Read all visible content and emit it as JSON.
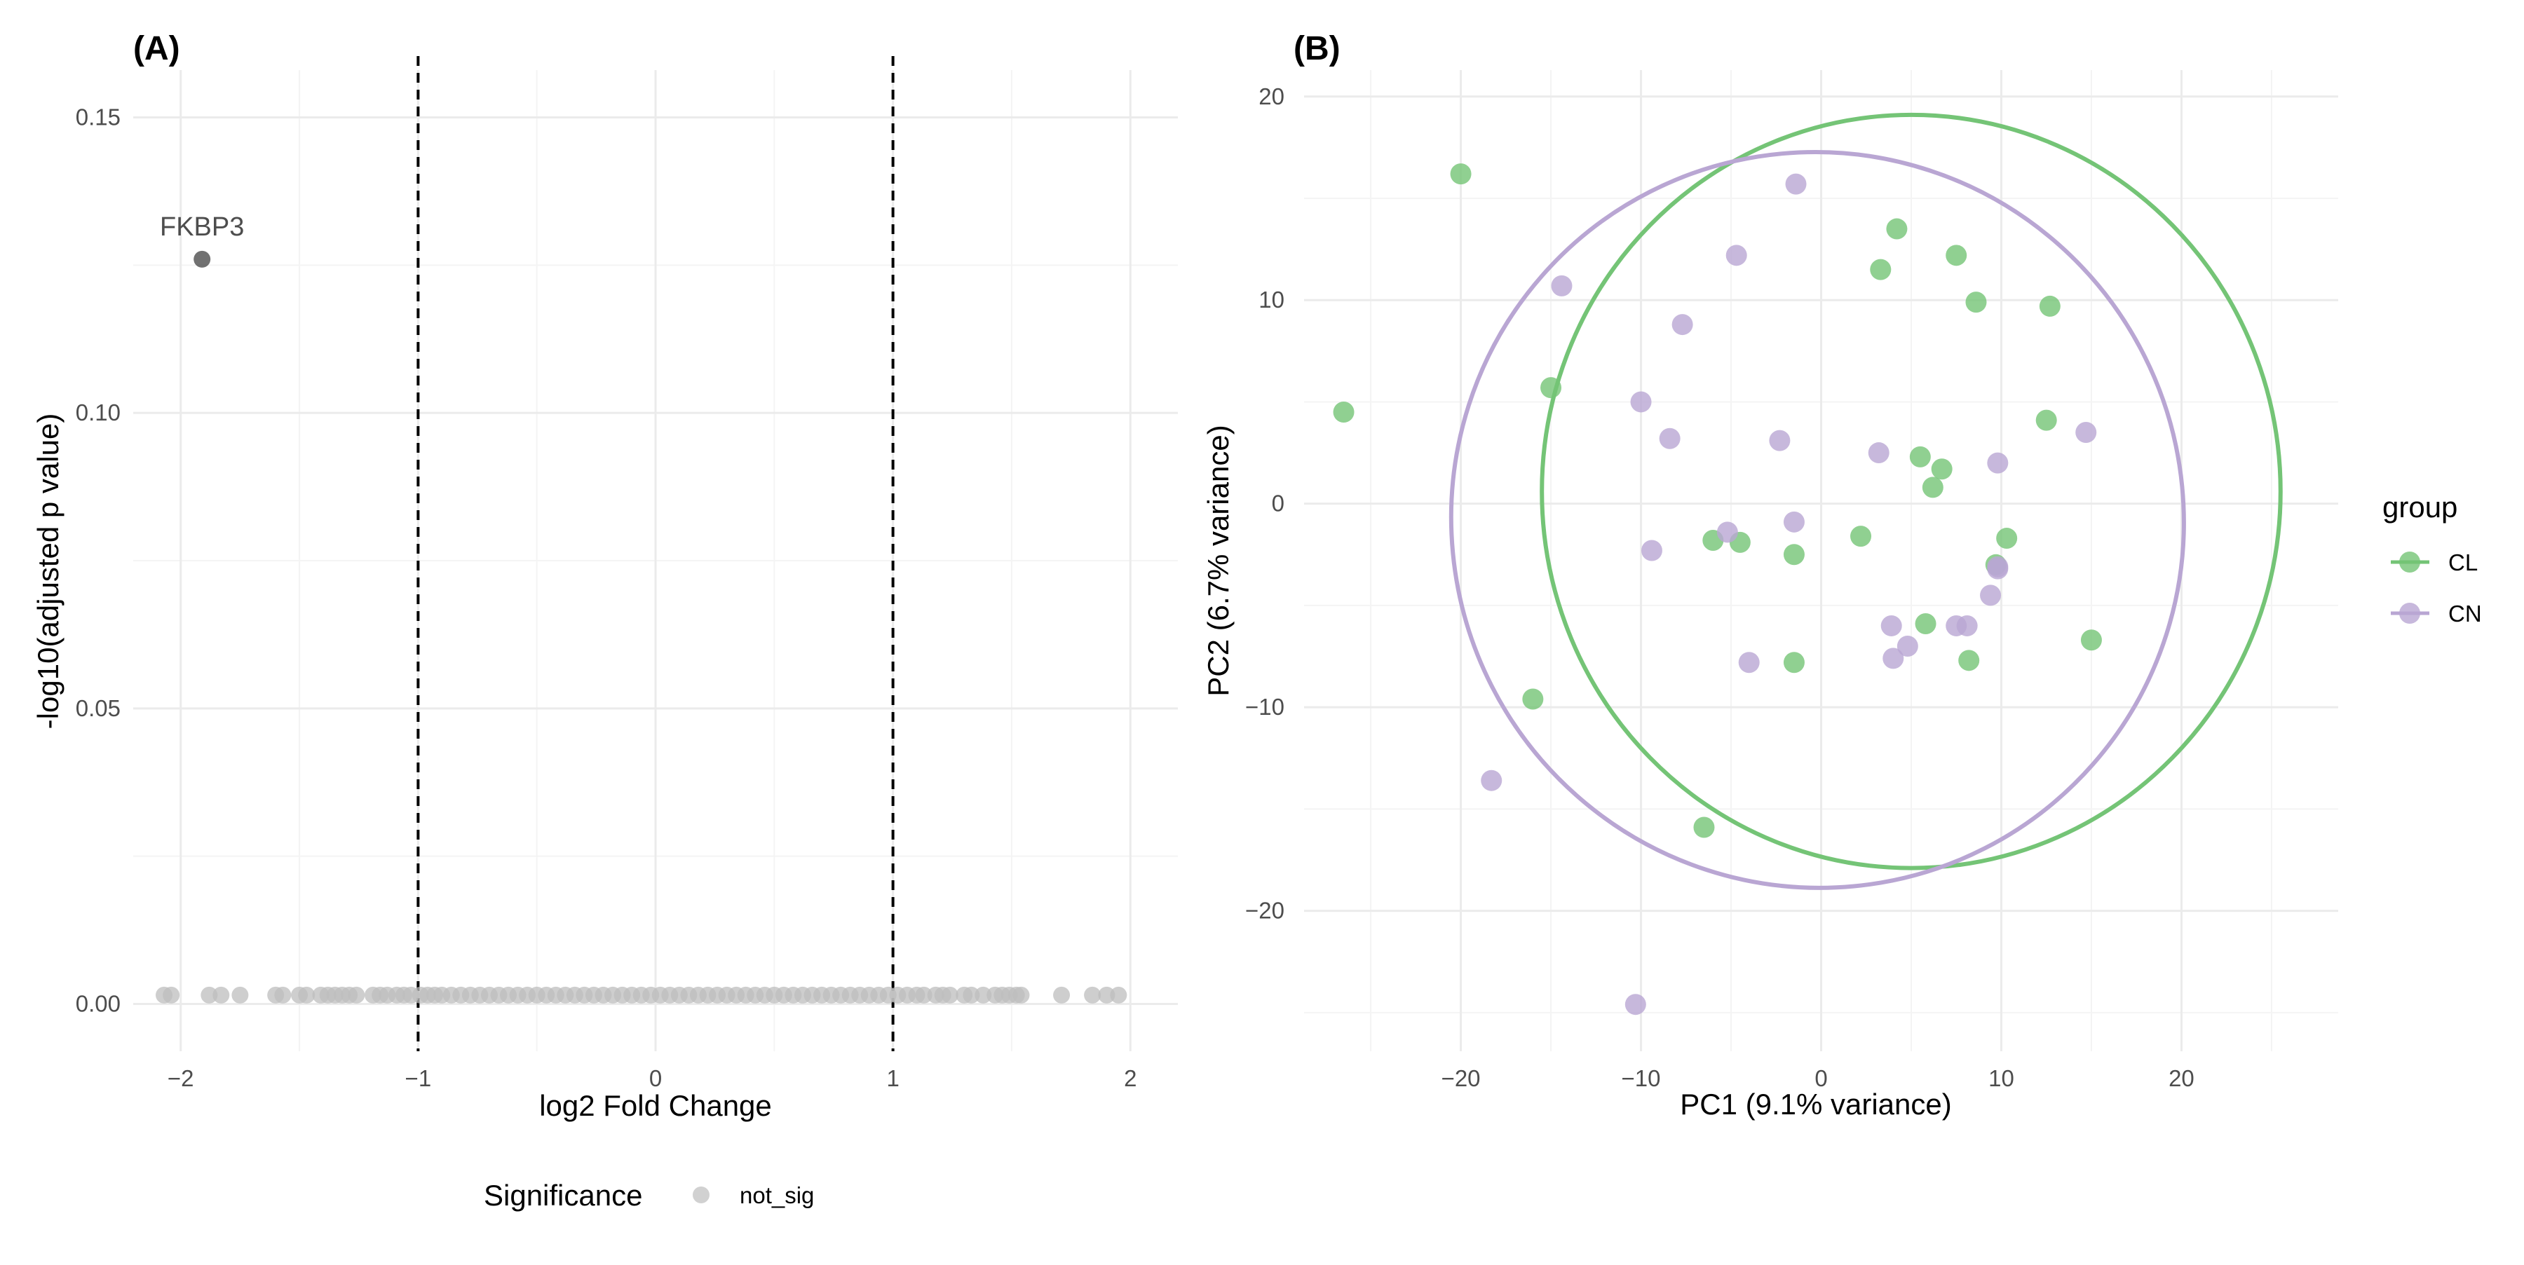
{
  "chart_data": [
    {
      "panel_label": "(A)",
      "type": "scatter",
      "xlabel": "log2 Fold Change",
      "ylabel": "-log10(adjusted p value)",
      "xlim": [
        -2.2,
        2.2
      ],
      "ylim": [
        -0.008,
        0.158
      ],
      "x_ticks": [
        -2,
        -1,
        0,
        1,
        2
      ],
      "y_ticks": [
        0.0,
        0.05,
        0.1,
        0.15
      ],
      "y_tick_labels": [
        "0.00",
        "0.05",
        "0.10",
        "0.15"
      ],
      "grid": true,
      "threshold_lines": [
        -1,
        1
      ],
      "legend_title": "Significance",
      "legend_position": "bottom",
      "series": [
        {
          "name": "not_sig",
          "color": "#bdbdbd",
          "x": [
            -2.07,
            -2.04,
            -1.88,
            -1.83,
            -1.75,
            -1.6,
            -1.57,
            -1.5,
            -1.47,
            -1.41,
            -1.38,
            -1.35,
            -1.32,
            -1.29,
            -1.26,
            -1.19,
            -1.16,
            -1.13,
            -1.09,
            -1.06,
            -1.03,
            -0.99,
            -0.96,
            -0.93,
            -0.9,
            -0.86,
            -0.82,
            -0.78,
            -0.74,
            -0.7,
            -0.66,
            -0.62,
            -0.58,
            -0.54,
            -0.5,
            -0.46,
            -0.42,
            -0.38,
            -0.34,
            -0.3,
            -0.26,
            -0.22,
            -0.18,
            -0.14,
            -0.1,
            -0.06,
            -0.02,
            0.02,
            0.06,
            0.1,
            0.14,
            0.18,
            0.22,
            0.26,
            0.3,
            0.34,
            0.38,
            0.42,
            0.46,
            0.5,
            0.54,
            0.58,
            0.62,
            0.66,
            0.7,
            0.74,
            0.78,
            0.82,
            0.86,
            0.9,
            0.94,
            0.98,
            1.02,
            1.06,
            1.1,
            1.13,
            1.18,
            1.21,
            1.24,
            1.3,
            1.33,
            1.38,
            1.43,
            1.46,
            1.49,
            1.52,
            1.54,
            1.71,
            1.84,
            1.9,
            1.95
          ],
          "y": [
            0.0015,
            0.0015,
            0.0015,
            0.0015,
            0.0015,
            0.0015,
            0.0015,
            0.0015,
            0.0015,
            0.0015,
            0.0015,
            0.0015,
            0.0015,
            0.0015,
            0.0015,
            0.0015,
            0.0015,
            0.0015,
            0.0015,
            0.0015,
            0.0015,
            0.0015,
            0.0015,
            0.0015,
            0.0015,
            0.0015,
            0.0015,
            0.0015,
            0.0015,
            0.0015,
            0.0015,
            0.0015,
            0.0015,
            0.0015,
            0.0015,
            0.0015,
            0.0015,
            0.0015,
            0.0015,
            0.0015,
            0.0015,
            0.0015,
            0.0015,
            0.0015,
            0.0015,
            0.0015,
            0.0015,
            0.0015,
            0.0015,
            0.0015,
            0.0015,
            0.0015,
            0.0015,
            0.0015,
            0.0015,
            0.0015,
            0.0015,
            0.0015,
            0.0015,
            0.0015,
            0.0015,
            0.0015,
            0.0015,
            0.0015,
            0.0015,
            0.0015,
            0.0015,
            0.0015,
            0.0015,
            0.0015,
            0.0015,
            0.0015,
            0.0015,
            0.0015,
            0.0015,
            0.0015,
            0.0015,
            0.0015,
            0.0015,
            0.0015,
            0.0015,
            0.0015,
            0.0015,
            0.0015,
            0.0015,
            0.0015,
            0.0015,
            0.0015,
            0.0015,
            0.0015,
            0.0015
          ]
        },
        {
          "name": "",
          "color": "#424242",
          "x": [
            -1.91
          ],
          "y": [
            0.126
          ],
          "labels": [
            "FKBP3"
          ]
        }
      ]
    },
    {
      "panel_label": "(B)",
      "type": "scatter",
      "xlabel": "PC1 (9.1% variance)",
      "ylabel": "PC2 (6.7% variance)",
      "xlim": [
        -28.7,
        28.7
      ],
      "ylim": [
        -26.9,
        21.3
      ],
      "x_ticks": [
        -20,
        -10,
        0,
        10,
        20
      ],
      "y_ticks": [
        -20,
        -10,
        0,
        10,
        20
      ],
      "grid": true,
      "legend_title": "group",
      "legend_position": "right",
      "ellipses": [
        {
          "group": "CL",
          "center": [
            5,
            0.6
          ],
          "rx": 20.5,
          "ry": 18.5
        },
        {
          "group": "CN",
          "center": [
            -0.2,
            -0.8
          ],
          "rx": 20.3,
          "ry": 18.1,
          "tilt_deg": -27
        }
      ],
      "series": [
        {
          "name": "CL",
          "color": "#74c476",
          "x": [
            -26.5,
            -20,
            -15,
            -16,
            -6.5,
            -6,
            -4.5,
            -1.5,
            -1.5,
            2.2,
            3.3,
            4.2,
            5.5,
            5.8,
            6.2,
            6.7,
            7.5,
            8.2,
            8.6,
            9.7,
            10.3,
            12.5,
            12.7,
            15
          ],
          "y": [
            4.5,
            16.2,
            5.7,
            -9.6,
            -15.9,
            -1.8,
            -1.9,
            -2.5,
            -7.8,
            -1.6,
            11.5,
            13.5,
            2.3,
            -5.9,
            0.8,
            1.7,
            12.2,
            -7.7,
            9.9,
            -3,
            -1.7,
            4.1,
            9.7,
            -6.7
          ]
        },
        {
          "name": "CN",
          "color": "#b9a6d3",
          "x": [
            -18.3,
            -14.4,
            -10.3,
            -10,
            -9.4,
            -8.4,
            -7.7,
            -5.2,
            -4.7,
            -4,
            -2.3,
            -1.5,
            -1.4,
            3.2,
            3.9,
            4,
            4.8,
            7.5,
            8.1,
            9.4,
            9.8,
            9.8,
            9.8,
            14.7
          ],
          "y": [
            -13.6,
            10.7,
            -24.6,
            5,
            -2.3,
            3.2,
            8.8,
            -1.4,
            12.2,
            -7.8,
            3.1,
            -0.9,
            15.7,
            2.5,
            -6,
            -7.6,
            -7,
            -6,
            -6,
            -4.5,
            2,
            -3.1,
            -3.2,
            3.5
          ]
        }
      ]
    }
  ]
}
